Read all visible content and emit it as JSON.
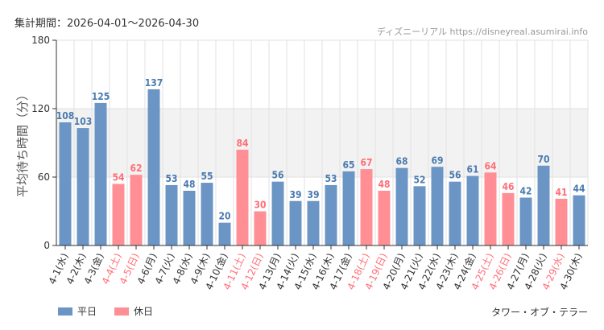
{
  "header": {
    "period": "集計期間：2026-04-01～2026-04-30",
    "source": "ディズニーリアル https://disneyreal.asumirai.info"
  },
  "legend": {
    "weekday_label": "平日",
    "holiday_label": "休日"
  },
  "subject": "タワー・オブ・テラー",
  "colors": {
    "weekday": "#6a95c4",
    "holiday": "#ff8f94",
    "weekday_text": "#4a7bb0",
    "holiday_text": "#ff6f77",
    "band": "#f2f2f2",
    "grid": "#e2e2e2"
  },
  "chart_data": {
    "type": "bar",
    "ylabel": "平均待ち時間（分）",
    "ylim": [
      0,
      180
    ],
    "yticks": [
      0,
      60,
      120,
      180
    ],
    "shaded_band": [
      60,
      120
    ],
    "categories": [
      "4-1(水)",
      "4-2(木)",
      "4-3(金)",
      "4-4(土)",
      "4-5(日)",
      "4-6(月)",
      "4-7(火)",
      "4-8(水)",
      "4-9(木)",
      "4-10(金)",
      "4-11(土)",
      "4-12(日)",
      "4-13(月)",
      "4-14(火)",
      "4-15(水)",
      "4-16(木)",
      "4-17(金)",
      "4-18(土)",
      "4-19(日)",
      "4-20(月)",
      "4-21(火)",
      "4-22(水)",
      "4-23(木)",
      "4-24(金)",
      "4-25(土)",
      "4-26(日)",
      "4-27(月)",
      "4-28(火)",
      "4-29(水)",
      "4-30(木)"
    ],
    "values": [
      108,
      103,
      125,
      54,
      62,
      137,
      53,
      48,
      55,
      20,
      84,
      30,
      56,
      39,
      39,
      53,
      65,
      67,
      48,
      68,
      52,
      69,
      56,
      61,
      64,
      46,
      42,
      70,
      41,
      44
    ],
    "holiday": [
      false,
      false,
      false,
      true,
      true,
      false,
      false,
      false,
      false,
      false,
      true,
      true,
      false,
      false,
      false,
      false,
      false,
      true,
      true,
      false,
      false,
      false,
      false,
      false,
      true,
      true,
      false,
      false,
      true,
      false
    ],
    "series": [
      {
        "name": "平日",
        "color": "#6a95c4"
      },
      {
        "name": "休日",
        "color": "#ff8f94"
      }
    ],
    "legend_position": "bottom-left",
    "grid": true
  }
}
